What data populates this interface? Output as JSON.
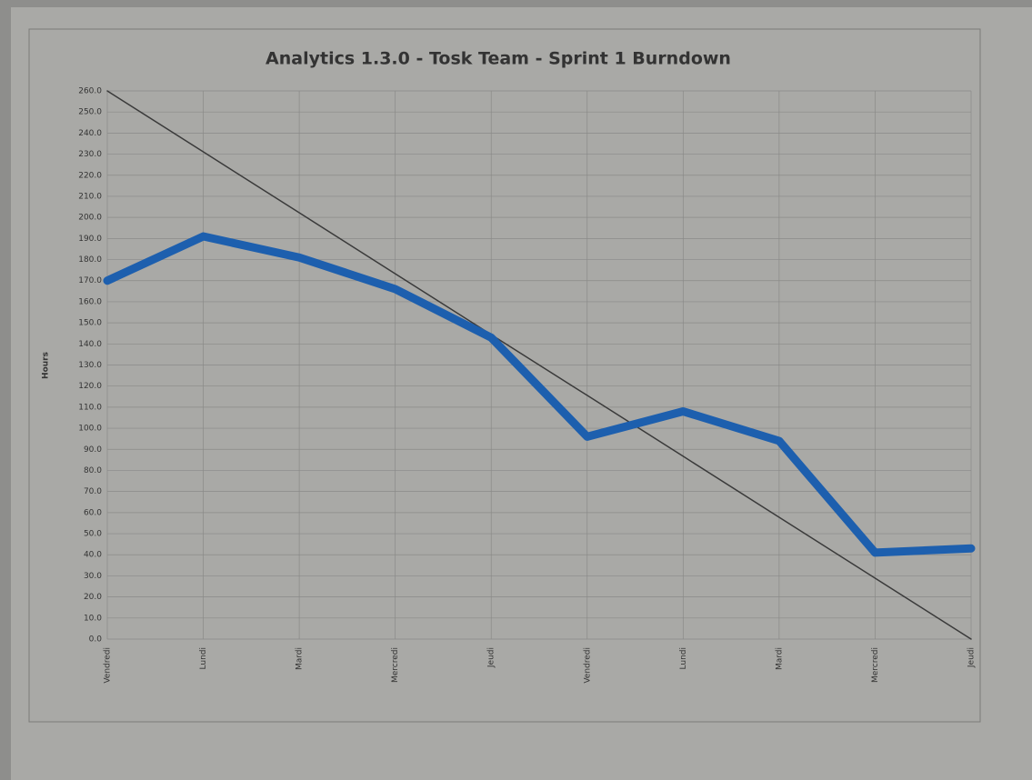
{
  "chart_data": {
    "type": "line",
    "title": "Analytics 1.3.0 - Tosk Team - Sprint 1 Burndown",
    "y_label": "Hours",
    "categories": [
      "Vendredi",
      "Lundi",
      "Mardi",
      "Mercredi",
      "Jeudi",
      "Vendredi",
      "Lundi",
      "Mardi",
      "Mercredi",
      "Jeudi"
    ],
    "series": [
      {
        "color": "#3a3a3a",
        "width": 1.5,
        "values": [
          260,
          231.1,
          202.2,
          173.3,
          144.4,
          115.6,
          86.7,
          57.8,
          28.9,
          0
        ]
      },
      {
        "color": "#1d5fae",
        "width": 9,
        "values": [
          170,
          191,
          181,
          166,
          143,
          96,
          108,
          94,
          41,
          43
        ]
      }
    ],
    "ylim": [
      0,
      260
    ],
    "yticks": [
      {
        "value": 0,
        "label": "0.0"
      },
      {
        "value": 10,
        "label": "10.0"
      },
      {
        "value": 20,
        "label": "20.0"
      },
      {
        "value": 30,
        "label": "30.0"
      },
      {
        "value": 40,
        "label": "40.0"
      },
      {
        "value": 50,
        "label": "50.0"
      },
      {
        "value": 60,
        "label": "60.0"
      },
      {
        "value": 70,
        "label": "70.0"
      },
      {
        "value": 80,
        "label": "80.0"
      },
      {
        "value": 90,
        "label": "90.0"
      },
      {
        "value": 100,
        "label": "100.0"
      },
      {
        "value": 110,
        "label": "110.0"
      },
      {
        "value": 120,
        "label": "120.0"
      },
      {
        "value": 130,
        "label": "130.0"
      },
      {
        "value": 140,
        "label": "140.0"
      },
      {
        "value": 150,
        "label": "150.0"
      },
      {
        "value": 160,
        "label": "160.0"
      },
      {
        "value": 170,
        "label": "170.0"
      },
      {
        "value": 180,
        "label": "180.0"
      },
      {
        "value": 190,
        "label": "190.0"
      },
      {
        "value": 200,
        "label": "200.0"
      },
      {
        "value": 210,
        "label": "210.0"
      },
      {
        "value": 220,
        "label": "220.0"
      },
      {
        "value": 230,
        "label": "230.0"
      },
      {
        "value": 240,
        "label": "240.0"
      },
      {
        "value": 250,
        "label": "250.0"
      },
      {
        "value": 260,
        "label": "260.0"
      }
    ],
    "grid": true
  }
}
